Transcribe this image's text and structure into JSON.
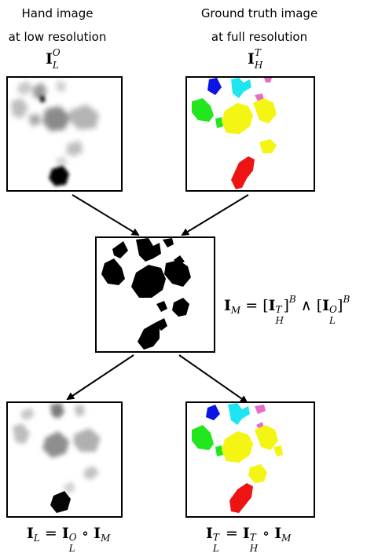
{
  "captions": {
    "left_line1": "Hand image",
    "left_line2": "at low resolution",
    "right_line1": "Ground truth image",
    "right_line2": "at full resolution"
  },
  "symbols": {
    "IO": "I",
    "IO_sub": "L",
    "IO_sup": "O",
    "IT": "I",
    "IT_sub": "H",
    "IT_sup": "T"
  },
  "equations": {
    "mask": {
      "lhs": "I",
      "lhs_sub": "M",
      "rhs": "= [I_H^T]^B ∧ [I_L^O]^B"
    },
    "left": {
      "text": "I_L = I_L^O ∘ I_M"
    },
    "right": {
      "text": "I_L^T = I_H^T ∘ I_M"
    }
  },
  "colors": {
    "blue": "#0a14e6",
    "cyan": "#1ee6f0",
    "pink": "#e66ec8",
    "green": "#22e61e",
    "yellow": "#f5f514",
    "red": "#ee1414",
    "black": "#000000"
  }
}
